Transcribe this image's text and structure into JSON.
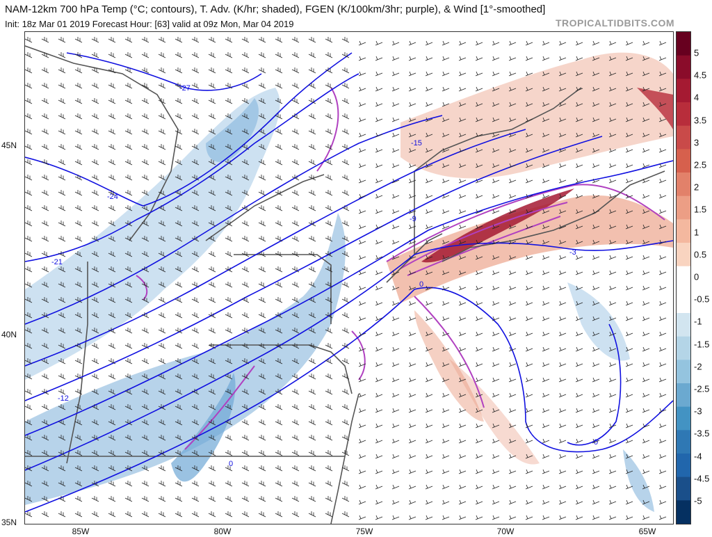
{
  "header": {
    "title": "NAM-12km 700 hPa Temp (°C; contours), T. Adv. (K/hr; shaded), FGEN (K/100km/3hr; purple), & Wind [1°-smoothed]",
    "subtitle": "Init: 18z Mar 01 2019   Forecast Hour: [63]   valid at 09z Mon, Mar 04 2019",
    "brand": "TROPICALTIDBITS.COM"
  },
  "colorbar": {
    "labels": [
      "5",
      "4.5",
      "4",
      "3.5",
      "3",
      "2.5",
      "2",
      "1.5",
      "1",
      "0.5",
      "0",
      "-0.5",
      "-1",
      "-1.5",
      "-2",
      "-2.5",
      "-3",
      "-3.5",
      "-4",
      "-4.5",
      "-5"
    ],
    "colors": [
      "#67001f",
      "#8a0c2a",
      "#a51a32",
      "#b82d3b",
      "#c94a49",
      "#d6604d",
      "#e2816a",
      "#ec9e85",
      "#f4b89f",
      "#f9d4c0",
      "#ffffff",
      "#ffffff",
      "#d2e5f0",
      "#b4d5e7",
      "#94c4df",
      "#6ba9d0",
      "#4393c3",
      "#2f78b4",
      "#2166ac",
      "#1a4f8a",
      "#053061"
    ]
  },
  "axes": {
    "lat_labels": [
      "45N",
      "40N",
      "35N"
    ],
    "lon_labels": [
      "85W",
      "80W",
      "75W",
      "70W",
      "65W"
    ]
  },
  "contour_labels": [
    "-27",
    "-24",
    "-21",
    "-15",
    "-12",
    "-9",
    "-3",
    "0",
    "0",
    "0"
  ],
  "colors": {
    "temp_contour": "#1010e0",
    "fgen": "#b040c0",
    "warm": "#e9967a",
    "cold": "#6fa8d6",
    "borders": "#555555"
  }
}
